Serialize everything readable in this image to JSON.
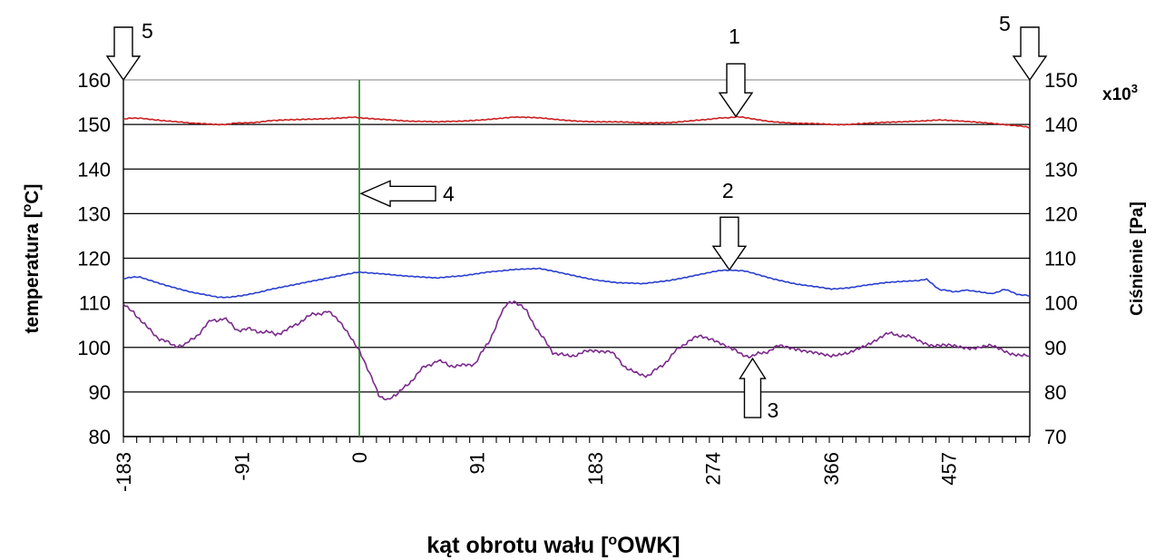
{
  "chart_data": {
    "type": "line",
    "xlabel": "kąt obrotu wału [°OWK]",
    "ylabel_left": "temperatura [°C]",
    "ylabel_right": "Ciśnienie [Pa]",
    "right_axis_multiplier": "x10³",
    "xlim": [
      -183,
      520
    ],
    "ylim_left": [
      80,
      160
    ],
    "ylim_right": [
      70,
      150
    ],
    "x_ticks": [
      -183,
      -91,
      0,
      91,
      183,
      274,
      366,
      457
    ],
    "y_ticks_left": [
      80,
      90,
      100,
      110,
      120,
      130,
      140,
      150,
      160
    ],
    "y_ticks_right": [
      70,
      80,
      90,
      100,
      110,
      120,
      130,
      140,
      150
    ],
    "grid": "horizontal",
    "vertical_marker_x": 0,
    "series": [
      {
        "color": "#cc2020",
        "axis": "left",
        "x": [
          -183,
          -170,
          -150,
          -130,
          -110,
          -91,
          -70,
          -50,
          -30,
          -10,
          0,
          20,
          40,
          60,
          80,
          100,
          120,
          140,
          160,
          183,
          200,
          220,
          240,
          260,
          274,
          290,
          300,
          320,
          340,
          366,
          390,
          410,
          430,
          450,
          470,
          490,
          510,
          520
        ],
        "y": [
          151.2,
          151.5,
          150.8,
          150.2,
          150.0,
          150.3,
          150.8,
          151.0,
          151.3,
          151.6,
          151.5,
          151.2,
          150.7,
          150.5,
          150.8,
          151.2,
          151.6,
          151.4,
          151.0,
          150.6,
          150.5,
          150.3,
          150.5,
          150.9,
          151.2,
          151.7,
          151.5,
          150.7,
          150.2,
          150.0,
          150.1,
          150.5,
          150.8,
          151.0,
          150.6,
          150.3,
          149.8,
          149.2
        ]
      },
      {
        "color": "#2a3fd0",
        "axis": "left",
        "x": [
          -183,
          -170,
          -150,
          -130,
          -110,
          -91,
          -70,
          -50,
          -30,
          -10,
          0,
          20,
          40,
          60,
          80,
          100,
          120,
          140,
          160,
          183,
          200,
          220,
          240,
          260,
          274,
          290,
          300,
          320,
          340,
          366,
          390,
          410,
          430,
          440,
          450,
          460,
          470,
          490,
          500,
          510,
          520
        ],
        "y": [
          115.5,
          115.8,
          114.0,
          112.3,
          111.2,
          111.5,
          113.0,
          114.0,
          115.2,
          116.5,
          116.8,
          116.5,
          116.0,
          115.5,
          116.0,
          117.0,
          117.5,
          117.6,
          116.5,
          115.2,
          114.5,
          114.2,
          115.0,
          116.2,
          117.0,
          117.4,
          117.0,
          115.5,
          114.2,
          113.0,
          113.8,
          114.5,
          115.0,
          115.2,
          113.0,
          112.5,
          112.8,
          112.0,
          113.0,
          112.0,
          111.5
        ]
      },
      {
        "color": "#7b2a8c",
        "axis": "left",
        "x": [
          -183,
          -175,
          -165,
          -155,
          -145,
          -135,
          -125,
          -115,
          -105,
          -95,
          -85,
          -75,
          -65,
          -55,
          -45,
          -35,
          -25,
          -15,
          -8,
          0,
          8,
          15,
          22,
          30,
          40,
          50,
          60,
          70,
          80,
          90,
          100,
          110,
          115,
          120,
          130,
          140,
          150,
          160,
          170,
          183,
          195,
          205,
          215,
          225,
          235,
          245,
          255,
          265,
          274,
          285,
          295,
          305,
          315,
          325,
          340,
          355,
          366,
          380,
          395,
          410,
          420,
          430,
          445,
          460,
          475,
          490,
          505,
          520
        ],
        "y": [
          110.0,
          108.0,
          104.5,
          102.0,
          100.5,
          100.5,
          103.0,
          106.0,
          106.5,
          104.0,
          104.0,
          103.5,
          103.0,
          104.0,
          106.0,
          107.5,
          108.0,
          106.0,
          102.5,
          99.0,
          94.0,
          89.5,
          88.0,
          89.5,
          92.5,
          95.5,
          97.0,
          96.0,
          95.8,
          96.5,
          101.0,
          107.5,
          110.0,
          110.5,
          108.0,
          103.0,
          99.0,
          98.0,
          98.5,
          99.5,
          99.0,
          96.0,
          94.0,
          93.8,
          96.0,
          99.0,
          101.5,
          102.5,
          102.0,
          100.5,
          98.5,
          98.0,
          99.0,
          100.2,
          99.8,
          98.5,
          97.8,
          98.5,
          101.0,
          103.0,
          102.8,
          102.0,
          100.5,
          100.2,
          100.0,
          100.2,
          98.8,
          98.0
        ]
      }
    ],
    "annotations": [
      {
        "label": "1"
      },
      {
        "label": "2"
      },
      {
        "label": "3"
      },
      {
        "label": "4"
      },
      {
        "label": "5"
      },
      {
        "label": "5"
      }
    ]
  }
}
